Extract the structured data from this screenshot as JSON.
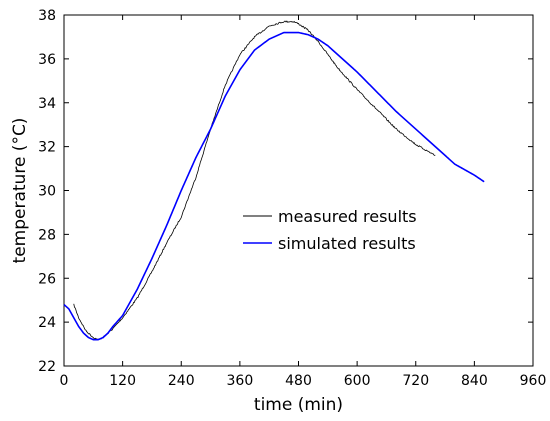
{
  "chart_data": {
    "type": "line",
    "title": "",
    "xlabel": "time (min)",
    "ylabel": "temperature (°C)",
    "xlim": [
      0,
      960
    ],
    "ylim": [
      22,
      38
    ],
    "xticks": [
      0,
      120,
      240,
      360,
      480,
      600,
      720,
      840,
      960
    ],
    "yticks": [
      22,
      24,
      26,
      28,
      30,
      32,
      34,
      36,
      38
    ],
    "grid": false,
    "legend_position": "center-right",
    "series": [
      {
        "name": "measured results",
        "color": "#000000",
        "style": "noisy-thin",
        "x": [
          20,
          30,
          45,
          60,
          70,
          80,
          100,
          120,
          150,
          180,
          210,
          240,
          270,
          300,
          330,
          360,
          390,
          420,
          450,
          470,
          480,
          500,
          520,
          540,
          560,
          600,
          640,
          680,
          720,
          760
        ],
        "y": [
          24.8,
          24.2,
          23.6,
          23.3,
          23.2,
          23.3,
          23.7,
          24.2,
          25.1,
          26.3,
          27.6,
          28.8,
          30.6,
          32.8,
          34.8,
          36.2,
          37.0,
          37.5,
          37.7,
          37.7,
          37.6,
          37.3,
          36.8,
          36.2,
          35.6,
          34.6,
          33.7,
          32.8,
          32.1,
          31.6
        ]
      },
      {
        "name": "simulated results",
        "color": "#0000ff",
        "style": "smooth",
        "x": [
          0,
          10,
          20,
          30,
          40,
          50,
          60,
          70,
          80,
          90,
          100,
          120,
          150,
          180,
          210,
          240,
          270,
          300,
          330,
          360,
          390,
          420,
          450,
          480,
          500,
          520,
          540,
          560,
          600,
          640,
          680,
          720,
          760,
          800,
          840,
          860
        ],
        "y": [
          24.8,
          24.6,
          24.2,
          23.8,
          23.5,
          23.3,
          23.2,
          23.2,
          23.3,
          23.5,
          23.8,
          24.3,
          25.5,
          26.9,
          28.4,
          30.0,
          31.5,
          32.8,
          34.3,
          35.5,
          36.4,
          36.9,
          37.2,
          37.2,
          37.1,
          36.9,
          36.6,
          36.2,
          35.4,
          34.5,
          33.6,
          32.8,
          32.0,
          31.2,
          30.7,
          30.4
        ]
      }
    ]
  }
}
